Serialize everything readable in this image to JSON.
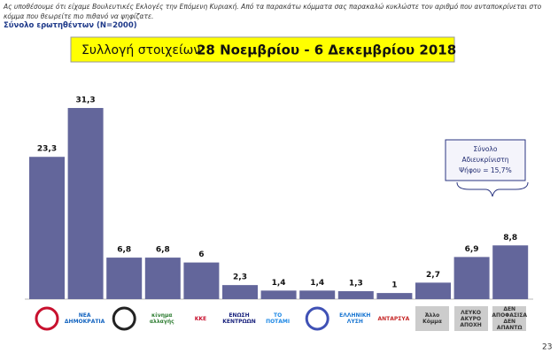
{
  "chart_data": {
    "type": "bar",
    "intro": "Ας υποθέσουμε ότι είχαμε Βουλευτικές Εκλογές την Επόμενη Κυριακή. Από τα παρακάτω κόμματα σας παρακαλώ κυκλώστε τον αριθμό που ανταποκρίνεται στο κόμμα που θεωρείτε πιο πιθανό να ψηφίζατε.",
    "subtitle": "Σύνολο ερωτηθέντων (Ν=2000)",
    "title_prefix": "Συλλογή στοιχείων",
    "title": "28 Νοεμβρίου - 6 Δεκεμβρίου 2018",
    "categories": [
      null,
      "ΝΕΑ ΔΗΜΟΚΡΑΤΙΑ",
      null,
      "κίνημα αλλαγής",
      "ΚΚΕ",
      "ΕΝΩΣΗ ΚΕΝΤΡΩΩΝ",
      "ΤΟ ΠΟΤΑΜΙ",
      null,
      "ΕΛΛΗΝΙΚΗ ΛΥΣΗ",
      "ΑΝΤΑΡΣΥΑ",
      "Άλλο Κόμμα",
      "ΛΕΥΚΟ ΑΚΥΡΟ ΑΠΟΧΗ",
      "ΔΕΝ ΑΠΟΦΑΣΙΣΑ ΔΕΝ ΑΠΑΝΤΩ"
    ],
    "values": [
      23.3,
      31.3,
      6.8,
      6.8,
      6,
      2.3,
      1.4,
      1.4,
      1.3,
      1,
      2.7,
      6.9,
      8.8
    ],
    "value_labels": [
      "23,3",
      "31,3",
      "6,8",
      "6,8",
      "6",
      "2,3",
      "1,4",
      "1,4",
      "1,3",
      "1",
      "2,7",
      "6,9",
      "8,8"
    ],
    "color": "#63669b",
    "annotation": [
      "Σύνολο",
      "Αδιευκρίνιστη",
      "Ψήφου = 15,7%"
    ],
    "page_number": "23"
  }
}
